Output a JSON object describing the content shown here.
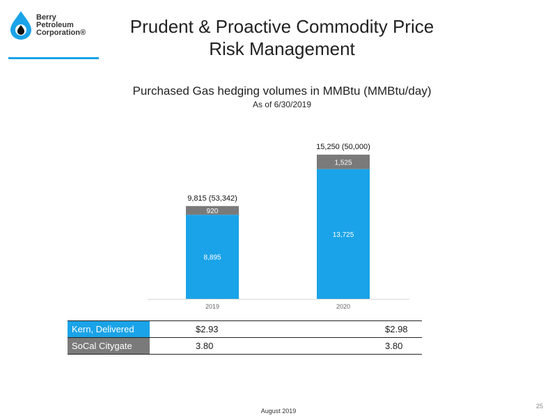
{
  "logo": {
    "line1": "Berry",
    "line2": "Petroleum",
    "line3": "Corporation®"
  },
  "title_line1": "Prudent & Proactive Commodity Price",
  "title_line2": "Risk Management",
  "chart_data": {
    "type": "bar",
    "stacked": true,
    "title": "Purchased Gas hedging volumes in MMBtu (MMBtu/day)",
    "subtitle": "As of 6/30/2019",
    "categories": [
      "2019",
      "2020"
    ],
    "series": [
      {
        "name": "Kern, Delivered",
        "values": [
          8895,
          13725
        ],
        "color": "#1aa3e8"
      },
      {
        "name": "SoCal Citygate",
        "values": [
          920,
          1525
        ],
        "color": "#7a7a7a"
      }
    ],
    "segment_labels": [
      [
        "8,895",
        "920"
      ],
      [
        "13,725",
        "1,525"
      ]
    ],
    "total_labels": [
      "9,815 (53,342)",
      "15,250 (50,000)"
    ],
    "ylim": [
      0,
      16500
    ]
  },
  "prices": {
    "rows": [
      {
        "label": "Kern, Delivered",
        "v2019": "$2.93",
        "v2020": "$2.98"
      },
      {
        "label": "SoCal Citygate",
        "v2019": "3.80",
        "v2020": "3.80"
      }
    ]
  },
  "footer": "August 2019",
  "page_number": "25"
}
